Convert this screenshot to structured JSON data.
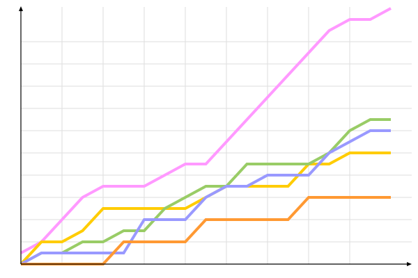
{
  "chart_data": {
    "type": "line",
    "title": "",
    "xlabel": "",
    "ylabel": "",
    "xlim": [
      0,
      18
    ],
    "ylim": [
      0,
      23
    ],
    "grid": true,
    "legend": "none",
    "x": [
      0,
      1,
      2,
      3,
      4,
      5,
      6,
      7,
      8,
      9,
      10,
      11,
      12,
      13,
      14,
      15,
      16,
      17,
      18
    ],
    "series": [
      {
        "color": "#ff99ff",
        "values": [
          1,
          2,
          4,
          6,
          7,
          7,
          7,
          8,
          9,
          9,
          11,
          13,
          15,
          17,
          19,
          21,
          22,
          22,
          23
        ]
      },
      {
        "color": "#ffcc00",
        "values": [
          0,
          2,
          2,
          3,
          5,
          5,
          5,
          5,
          5,
          6,
          7,
          7,
          7,
          7,
          9,
          9,
          10,
          10,
          10
        ]
      },
      {
        "color": "#99cc66",
        "values": [
          0,
          1,
          1,
          2,
          2,
          3,
          3,
          5,
          6,
          7,
          7,
          9,
          9,
          9,
          9,
          10,
          12,
          13,
          13
        ]
      },
      {
        "color": "#9999ff",
        "values": [
          0,
          1,
          1,
          1,
          1,
          1,
          4,
          4,
          4,
          6,
          7,
          7,
          8,
          8,
          8,
          10,
          11,
          12,
          12
        ]
      },
      {
        "color": "#ff9933",
        "values": [
          0,
          0,
          0,
          0,
          0,
          2,
          2,
          2,
          2,
          4,
          4,
          4,
          4,
          4,
          6,
          6,
          6,
          6,
          6
        ]
      }
    ]
  }
}
